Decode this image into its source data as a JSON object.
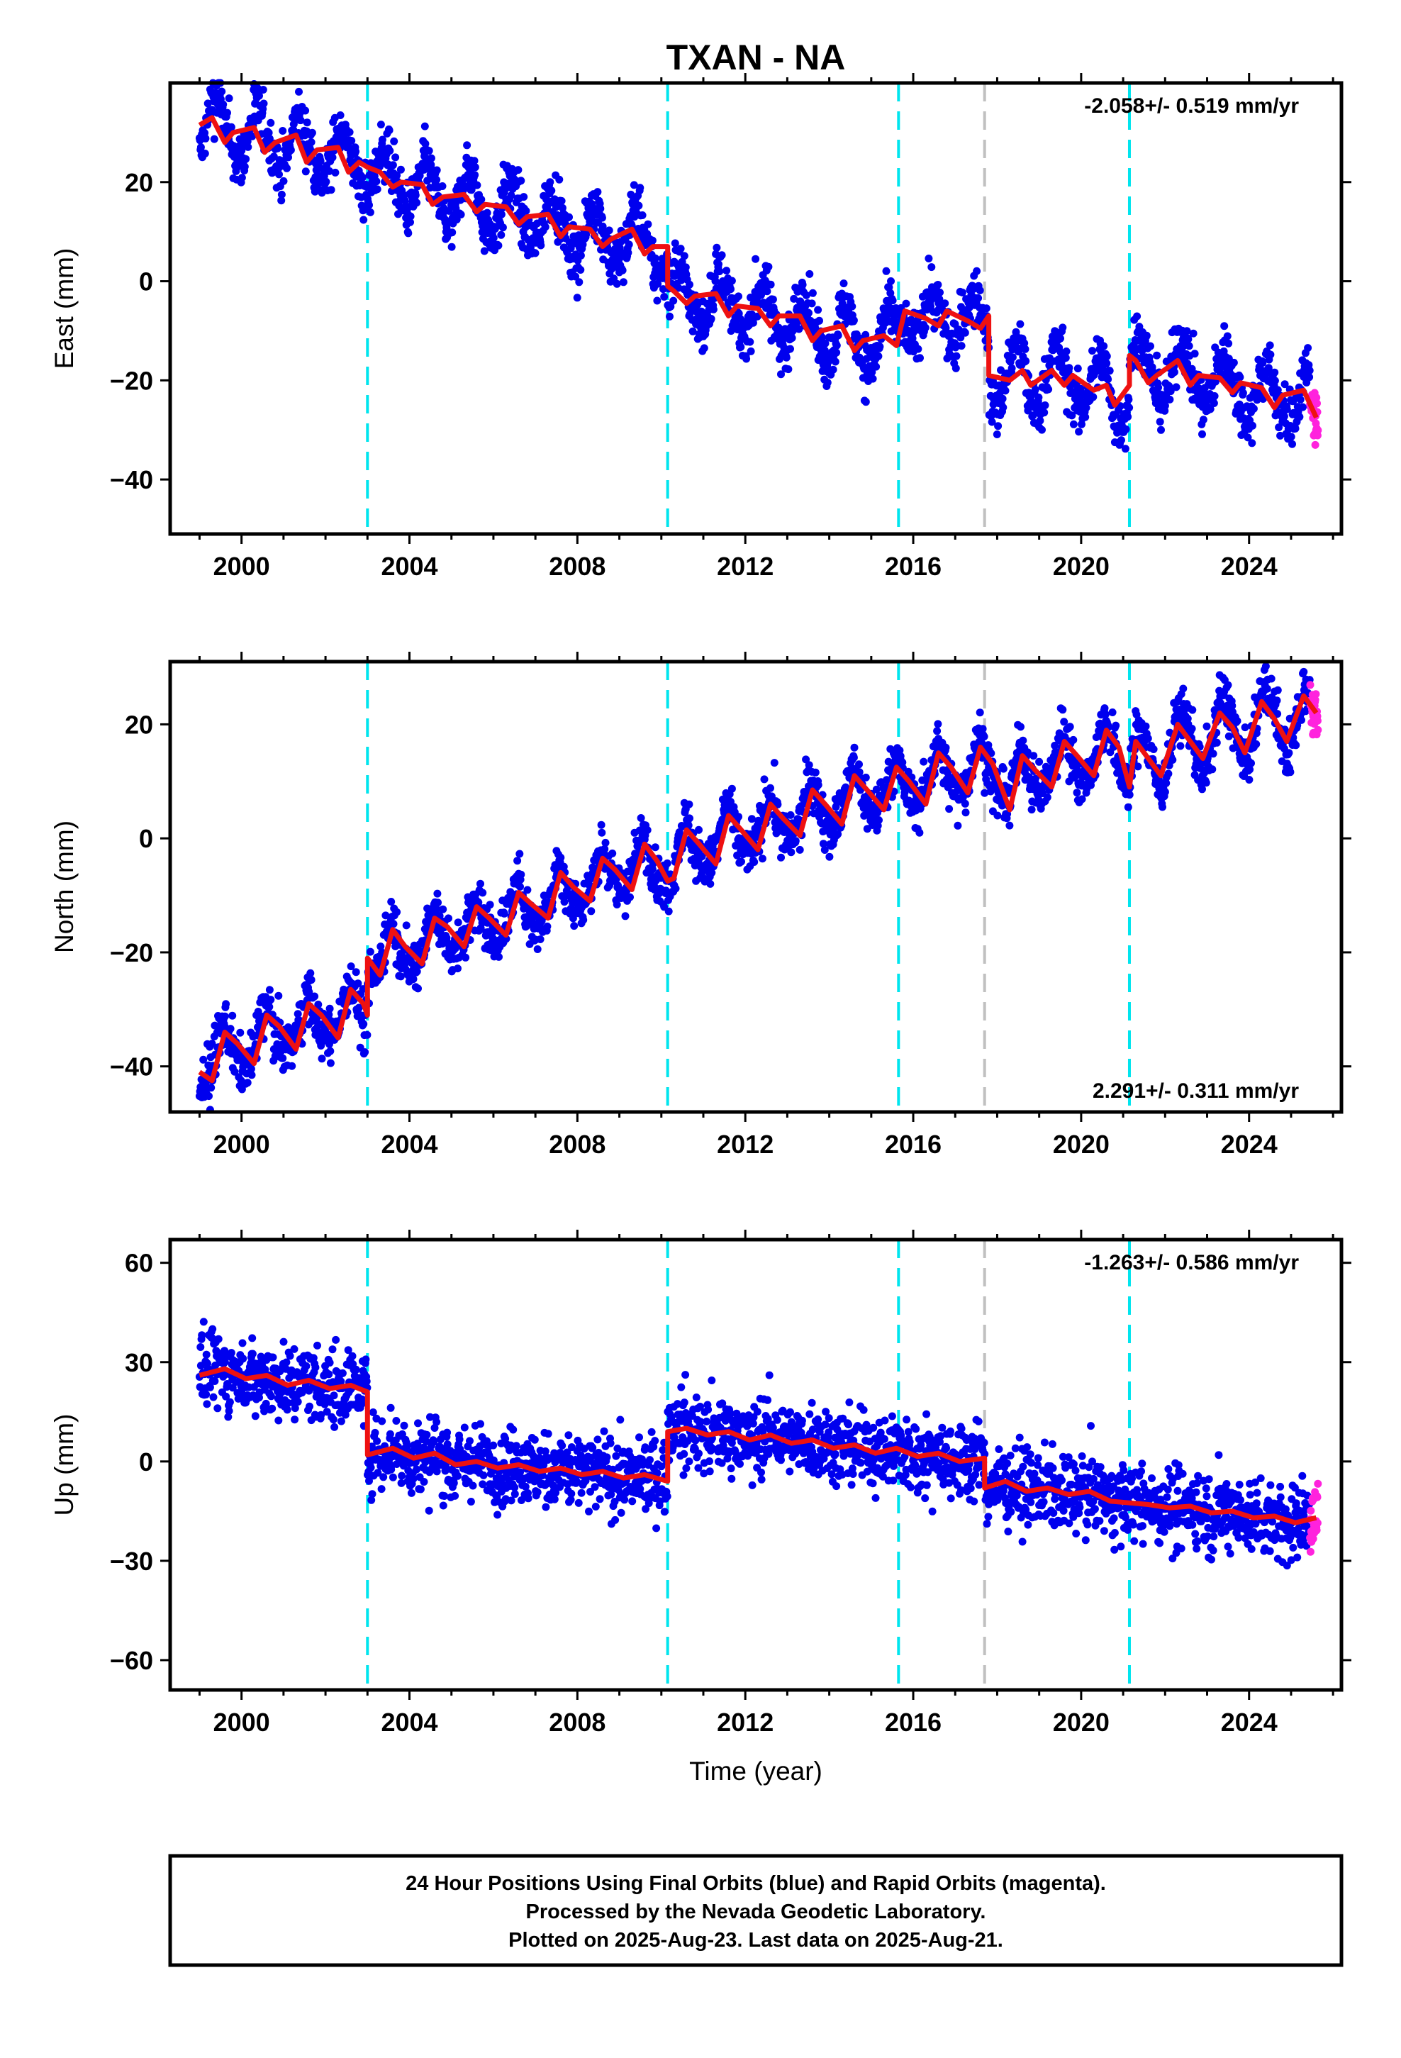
{
  "title": "TXAN - NA",
  "x_axis_label": "Time (year)",
  "footer": [
    "24 Hour Positions Using Final Orbits (blue) and Rapid Orbits (magenta).",
    "Processed by the Nevada Geodetic Laboratory.",
    "Plotted on 2025-Aug-23. Last data on 2025-Aug-21."
  ],
  "colors": {
    "final": "#0000ee",
    "rapid": "#ff22dd",
    "model": "#ee1111",
    "break_cyan": "#00e5ee",
    "break_gray": "#c0c0c0"
  },
  "chart_data": [
    {
      "type": "scatter",
      "component": "East",
      "ylabel": "East (mm)",
      "rate_label": "-2.058+/- 0.519 mm/yr",
      "rate_position": "top-right",
      "xlim": [
        1998.3,
        2026.2
      ],
      "ylim": [
        -51,
        40
      ],
      "yticks": [
        "20",
        "0",
        "−20",
        "−40"
      ],
      "ytick_values": [
        20,
        0,
        -20,
        -40
      ],
      "xticks": [
        "2000",
        "2004",
        "2008",
        "2012",
        "2016",
        "2020",
        "2024"
      ],
      "xtick_values": [
        2000,
        2004,
        2008,
        2012,
        2016,
        2020,
        2024
      ],
      "breaks_cyan": [
        2003.0,
        2010.15,
        2015.65,
        2021.15
      ],
      "breaks_gray": [
        2017.7
      ],
      "model_line": {
        "x": [
          1999.0,
          1999.3,
          1999.6,
          1999.8,
          2000.3,
          2000.55,
          2000.8,
          2001.3,
          2001.55,
          2001.8,
          2002.3,
          2002.55,
          2002.8,
          2003.0,
          2003.3,
          2003.6,
          2003.8,
          2004.3,
          2004.55,
          2004.8,
          2005.3,
          2005.6,
          2005.8,
          2006.3,
          2006.6,
          2006.8,
          2007.3,
          2007.6,
          2007.8,
          2008.3,
          2008.6,
          2008.8,
          2009.3,
          2009.6,
          2009.8,
          2010.15,
          2010.15,
          2010.3,
          2010.6,
          2010.8,
          2011.3,
          2011.6,
          2011.8,
          2012.3,
          2012.6,
          2012.8,
          2013.3,
          2013.6,
          2013.8,
          2014.3,
          2014.6,
          2014.8,
          2015.3,
          2015.6,
          2015.8,
          2016.3,
          2016.6,
          2016.8,
          2017.3,
          2017.6,
          2017.8,
          2017.8,
          2018.3,
          2018.6,
          2018.8,
          2019.3,
          2019.6,
          2019.8,
          2020.3,
          2020.6,
          2020.8,
          2021.15,
          2021.15,
          2021.3,
          2021.6,
          2021.8,
          2022.3,
          2022.6,
          2022.8,
          2023.3,
          2023.6,
          2023.8,
          2024.3,
          2024.6,
          2024.8,
          2025.3,
          2025.6
        ],
        "y": [
          31.5,
          33,
          28,
          30,
          31,
          26,
          28,
          29.5,
          24,
          26.5,
          27,
          22,
          24,
          23,
          22,
          19,
          20,
          19.5,
          15.5,
          17,
          17.5,
          14,
          15.5,
          15,
          11.5,
          13,
          13.5,
          9,
          11,
          10.5,
          7,
          8.5,
          10.5,
          5.5,
          7,
          7,
          -1,
          -2,
          -4.5,
          -3,
          -2.5,
          -7,
          -5,
          -5.5,
          -9,
          -7,
          -7,
          -12,
          -10,
          -9,
          -14,
          -12,
          -11,
          -13,
          -6,
          -7.5,
          -9,
          -6,
          -8,
          -9.5,
          -7,
          -19,
          -20,
          -18,
          -21,
          -18,
          -21,
          -19,
          -22,
          -21,
          -25,
          -21,
          -15,
          -16,
          -20.5,
          -19,
          -16,
          -21,
          -19,
          -19.5,
          -22.5,
          -20.5,
          -21.5,
          -25.5,
          -23,
          -22,
          -27.5
        ]
      }
    },
    {
      "type": "scatter",
      "component": "North",
      "ylabel": "North (mm)",
      "rate_label": "2.291+/- 0.311 mm/yr",
      "rate_position": "bottom-right",
      "xlim": [
        1998.3,
        2026.2
      ],
      "ylim": [
        -48,
        31
      ],
      "yticks": [
        "20",
        "0",
        "−20",
        "−40"
      ],
      "ytick_values": [
        20,
        0,
        -20,
        -40
      ],
      "xticks": [
        "2000",
        "2004",
        "2008",
        "2012",
        "2016",
        "2020",
        "2024"
      ],
      "xtick_values": [
        2000,
        2004,
        2008,
        2012,
        2016,
        2020,
        2024
      ],
      "breaks_cyan": [
        2003.0,
        2010.15,
        2015.65,
        2021.15
      ],
      "breaks_gray": [
        2017.7
      ],
      "model_line": {
        "x": [
          1999.0,
          1999.3,
          1999.6,
          1999.9,
          2000.3,
          2000.6,
          2000.9,
          2001.3,
          2001.6,
          2001.9,
          2002.3,
          2002.6,
          2002.9,
          2003.0,
          2003.0,
          2003.3,
          2003.6,
          2003.9,
          2004.3,
          2004.6,
          2004.9,
          2005.3,
          2005.6,
          2005.9,
          2006.3,
          2006.6,
          2006.9,
          2007.3,
          2007.6,
          2007.9,
          2008.3,
          2008.6,
          2008.9,
          2009.3,
          2009.6,
          2009.9,
          2010.15,
          2010.3,
          2010.6,
          2010.9,
          2011.3,
          2011.6,
          2011.9,
          2012.3,
          2012.6,
          2012.9,
          2013.3,
          2013.6,
          2013.9,
          2014.3,
          2014.6,
          2014.9,
          2015.3,
          2015.6,
          2015.9,
          2016.3,
          2016.6,
          2016.9,
          2017.3,
          2017.6,
          2017.9,
          2018.3,
          2018.6,
          2018.9,
          2019.3,
          2019.6,
          2019.9,
          2020.3,
          2020.6,
          2020.9,
          2021.15,
          2021.3,
          2021.6,
          2021.9,
          2022.3,
          2022.6,
          2022.9,
          2023.3,
          2023.6,
          2023.9,
          2024.3,
          2024.6,
          2024.9,
          2025.3,
          2025.6
        ],
        "y": [
          -41,
          -42.5,
          -34,
          -36,
          -39.5,
          -31,
          -33,
          -37,
          -29,
          -31,
          -35,
          -26.5,
          -29,
          -31,
          -21,
          -24,
          -16,
          -19,
          -22,
          -14,
          -15.5,
          -19,
          -12,
          -14,
          -17,
          -9.5,
          -11.5,
          -14,
          -6,
          -8.5,
          -11,
          -3.5,
          -5.5,
          -9,
          -1,
          -4,
          -7.5,
          -7,
          1.5,
          -1,
          -4.5,
          4,
          1.5,
          -2,
          6,
          3.5,
          0.5,
          8.5,
          6,
          2.5,
          11,
          8.5,
          5,
          12.5,
          10,
          6,
          15,
          12.5,
          8,
          16,
          13,
          5,
          14.5,
          12,
          9,
          17,
          14.5,
          11,
          19,
          16,
          9,
          17,
          14,
          11,
          20,
          17,
          14,
          22,
          19.5,
          15,
          24,
          21,
          17,
          25,
          22
        ]
      }
    },
    {
      "type": "scatter",
      "component": "Up",
      "ylabel": "Up (mm)",
      "rate_label": "-1.263+/- 0.586 mm/yr",
      "rate_position": "top-right",
      "xlim": [
        1998.3,
        2026.2
      ],
      "ylim": [
        -69,
        67
      ],
      "yticks": [
        "60",
        "30",
        "0",
        "−30",
        "−60"
      ],
      "ytick_values": [
        60,
        30,
        0,
        -30,
        -60
      ],
      "xticks": [
        "2000",
        "2004",
        "2008",
        "2012",
        "2016",
        "2020",
        "2024"
      ],
      "xtick_values": [
        2000,
        2004,
        2008,
        2012,
        2016,
        2020,
        2024
      ],
      "breaks_cyan": [
        2003.0,
        2010.15,
        2015.65,
        2021.15
      ],
      "breaks_gray": [
        2017.7
      ],
      "model_line": {
        "x": [
          1999.0,
          1999.6,
          2000.1,
          2000.6,
          2001.1,
          2001.6,
          2002.1,
          2002.6,
          2003.0,
          2003.0,
          2003.6,
          2004.1,
          2004.6,
          2005.1,
          2005.6,
          2006.1,
          2006.6,
          2007.1,
          2007.6,
          2008.1,
          2008.6,
          2009.1,
          2009.6,
          2010.15,
          2010.15,
          2010.6,
          2011.1,
          2011.6,
          2012.1,
          2012.6,
          2013.1,
          2013.6,
          2014.1,
          2014.6,
          2015.1,
          2015.6,
          2016.1,
          2016.6,
          2017.1,
          2017.7,
          2017.7,
          2018.2,
          2018.7,
          2019.2,
          2019.7,
          2020.2,
          2020.7,
          2021.15,
          2021.6,
          2022.1,
          2022.6,
          2023.1,
          2023.6,
          2024.1,
          2024.6,
          2025.1,
          2025.6
        ],
        "y": [
          26,
          28,
          25,
          26,
          23,
          24.5,
          22,
          23,
          21,
          2,
          4,
          1,
          2.5,
          -1,
          0,
          -2,
          -1,
          -3,
          -2,
          -4,
          -3,
          -5,
          -4,
          -6,
          9,
          10,
          8,
          9,
          6.5,
          8,
          5.5,
          6.5,
          4,
          5,
          2.5,
          4,
          1.5,
          2.5,
          0,
          1,
          -8,
          -6,
          -9,
          -8,
          -10,
          -9,
          -12,
          -12.5,
          -13,
          -14,
          -13.5,
          -15.5,
          -15,
          -17,
          -16.5,
          -18.5,
          -17
        ]
      }
    }
  ]
}
